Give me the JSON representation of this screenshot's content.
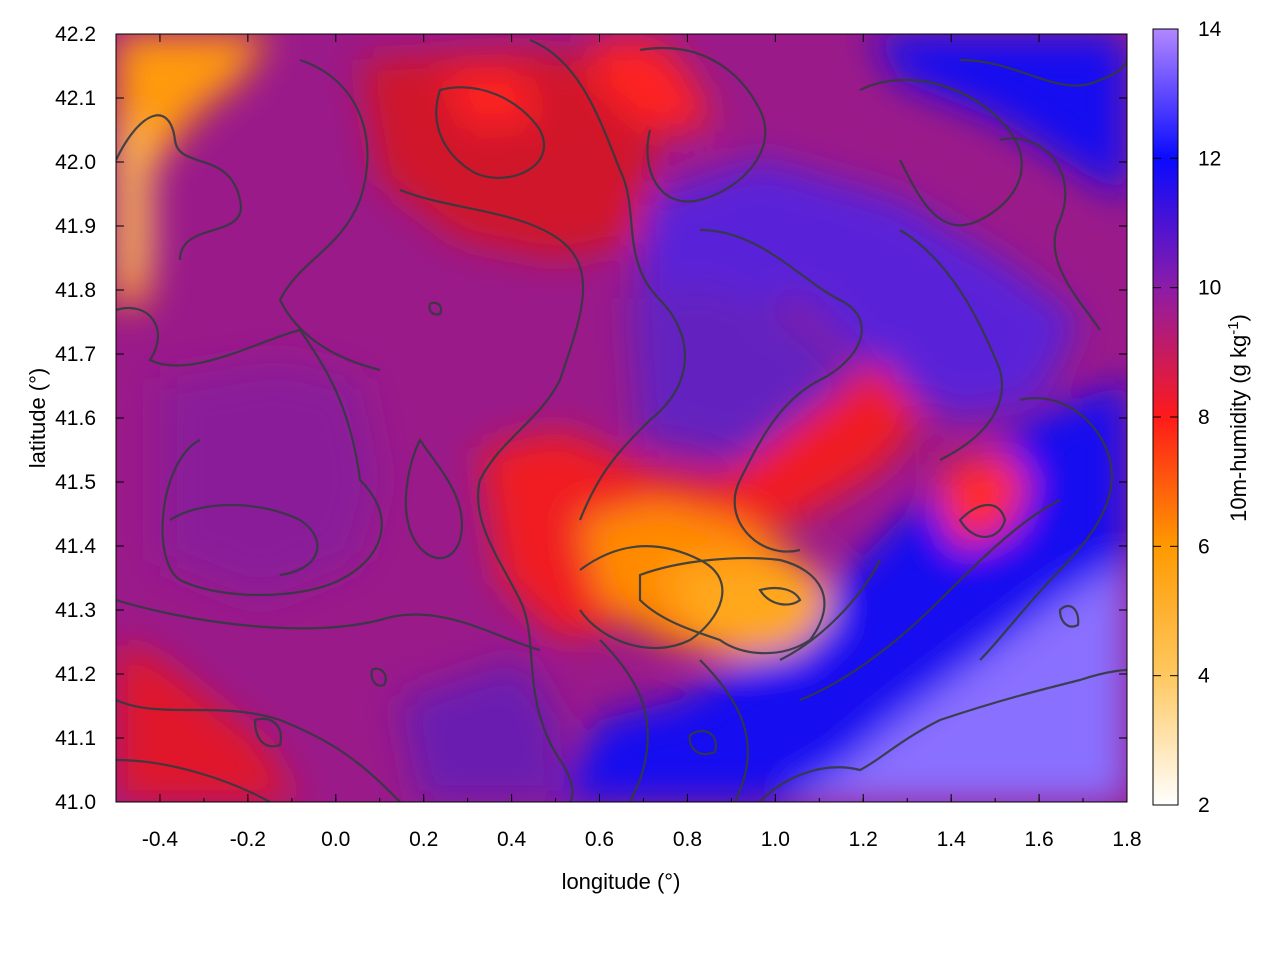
{
  "chart_data": {
    "type": "heatmap",
    "title": "",
    "xlabel": "longitude (°)",
    "ylabel": "latitude (°)",
    "xlim": [
      -0.5,
      1.8
    ],
    "ylim": [
      41.0,
      42.2
    ],
    "xticks": [
      -0.4,
      -0.2,
      0.0,
      0.2,
      0.4,
      0.6,
      0.8,
      1.0,
      1.2,
      1.4,
      1.6,
      1.8
    ],
    "xtick_labels": [
      "-0.4",
      "-0.2",
      "0.0",
      "0.2",
      "0.4",
      "0.6",
      "0.8",
      "1.0",
      "1.2",
      "1.4",
      "1.6",
      "1.8"
    ],
    "yticks": [
      41.0,
      41.1,
      41.2,
      41.3,
      41.4,
      41.5,
      41.6,
      41.7,
      41.8,
      41.9,
      42.0,
      42.1,
      42.2
    ],
    "ytick_labels": [
      "41.0",
      "41.1",
      "41.2",
      "41.3",
      "41.4",
      "41.5",
      "41.6",
      "41.7",
      "41.8",
      "41.9",
      "42.0",
      "42.1",
      "42.2"
    ],
    "colorbar": {
      "label_main": "10m-humidity (g kg",
      "label_sup": "-1",
      "label_end": ")",
      "range": [
        2,
        14
      ],
      "ticks": [
        2,
        4,
        6,
        8,
        10,
        12,
        14
      ],
      "tick_labels": [
        "2",
        "4",
        "6",
        "8",
        "10",
        "12",
        "14"
      ],
      "colormap": [
        [
          2,
          "#ffffff"
        ],
        [
          4,
          "#ffc860"
        ],
        [
          6,
          "#ff9a00"
        ],
        [
          8,
          "#ff1a1a"
        ],
        [
          10,
          "#8c1ca8"
        ],
        [
          12,
          "#0a0aff"
        ],
        [
          14,
          "#b287ff"
        ]
      ]
    },
    "field_estimates": [
      {
        "lon": -0.45,
        "lat": 42.15,
        "value": 6.0
      },
      {
        "lon": -0.45,
        "lat": 41.9,
        "value": 5.5
      },
      {
        "lon": -0.2,
        "lat": 41.6,
        "value": 9.2
      },
      {
        "lon": 0.1,
        "lat": 41.9,
        "value": 8.8
      },
      {
        "lon": 0.3,
        "lat": 41.7,
        "value": 8.6
      },
      {
        "lon": 0.55,
        "lat": 41.45,
        "value": 7.6
      },
      {
        "lon": 0.7,
        "lat": 41.35,
        "value": 6.8
      },
      {
        "lon": 0.95,
        "lat": 41.3,
        "value": 5.4
      },
      {
        "lon": 0.85,
        "lat": 41.05,
        "value": 11.2
      },
      {
        "lon": 1.3,
        "lat": 41.15,
        "value": 12.2
      },
      {
        "lon": 1.7,
        "lat": 41.1,
        "value": 13.0
      },
      {
        "lon": 1.6,
        "lat": 42.0,
        "value": 11.4
      },
      {
        "lon": 1.1,
        "lat": 41.65,
        "value": 8.2
      },
      {
        "lon": 0.85,
        "lat": 41.8,
        "value": 9.8
      },
      {
        "lon": 0.7,
        "lat": 42.12,
        "value": 8.0
      }
    ],
    "grid": false,
    "legend": "colorbar-right"
  }
}
